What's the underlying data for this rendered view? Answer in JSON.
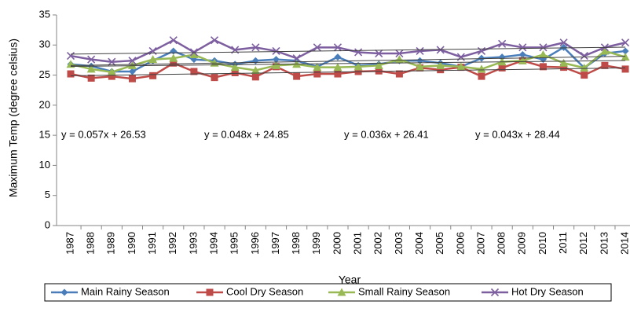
{
  "chart_data": {
    "type": "line",
    "y_label": "Maximum Temp (degree celsius)",
    "x_label": "Year",
    "categories": [
      "1987",
      "1988",
      "1989",
      "1990",
      "1991",
      "1992",
      "1993",
      "1994",
      "1995",
      "1996",
      "1997",
      "1998",
      "1999",
      "2000",
      "2001",
      "2002",
      "2003",
      "2004",
      "2005",
      "2006",
      "2007",
      "2008",
      "2009",
      "2010",
      "2011",
      "2012",
      "2013",
      "2014"
    ],
    "ylim": [
      0,
      35
    ],
    "yticks": [
      0,
      5,
      10,
      15,
      20,
      25,
      30,
      35
    ],
    "legend": "bottom",
    "series": [
      {
        "name": "Main Rainy Season",
        "color": "#4a7ebb",
        "marker": "diamond",
        "values": [
          26.8,
          26.5,
          25.6,
          25.6,
          27.4,
          29.0,
          27.6,
          27.4,
          26.8,
          27.4,
          27.6,
          27.4,
          26.4,
          28.0,
          26.6,
          26.8,
          27.4,
          27.4,
          27.0,
          26.4,
          27.8,
          28.0,
          28.4,
          27.6,
          29.6,
          26.2,
          28.6,
          29.0
        ],
        "trend": {
          "slope": 0.057,
          "intercept": 26.53,
          "label": "y = 0.057x + 26.53"
        }
      },
      {
        "name": "Cool Dry Season",
        "color": "#be4b48",
        "marker": "square",
        "values": [
          25.2,
          24.5,
          24.8,
          24.4,
          24.9,
          27.0,
          25.6,
          24.6,
          25.4,
          24.7,
          26.4,
          24.8,
          25.2,
          25.2,
          25.6,
          25.7,
          25.2,
          26.2,
          25.9,
          26.3,
          24.8,
          26.2,
          27.4,
          26.4,
          26.3,
          25.0,
          26.6,
          26.0
        ],
        "trend": {
          "slope": 0.048,
          "intercept": 24.85,
          "label": "y = 0.048x + 24.85"
        }
      },
      {
        "name": "Small Rainy Season",
        "color": "#98b954",
        "marker": "triangle",
        "values": [
          26.8,
          26.0,
          25.5,
          26.6,
          27.6,
          27.8,
          28.4,
          27.0,
          26.3,
          25.8,
          26.6,
          26.8,
          26.3,
          26.3,
          26.4,
          26.6,
          27.6,
          26.4,
          26.6,
          26.4,
          26.0,
          27.2,
          27.4,
          28.4,
          27.0,
          26.2,
          29.0,
          28.0
        ],
        "trend": {
          "slope": 0.036,
          "intercept": 26.41,
          "label": "y = 0.036x + 26.41"
        }
      },
      {
        "name": "Hot Dry Season",
        "color": "#7d5fa0",
        "marker": "cross",
        "values": [
          28.2,
          27.6,
          27.2,
          27.4,
          29.0,
          30.8,
          28.8,
          30.8,
          29.2,
          29.6,
          29.0,
          27.8,
          29.6,
          29.6,
          28.8,
          28.6,
          28.6,
          29.0,
          29.2,
          28.0,
          29.0,
          30.2,
          29.6,
          29.6,
          30.4,
          28.2,
          29.6,
          30.4
        ],
        "trend": {
          "slope": 0.043,
          "intercept": 28.44,
          "label": "y = 0.043x + 28.44"
        }
      }
    ]
  }
}
